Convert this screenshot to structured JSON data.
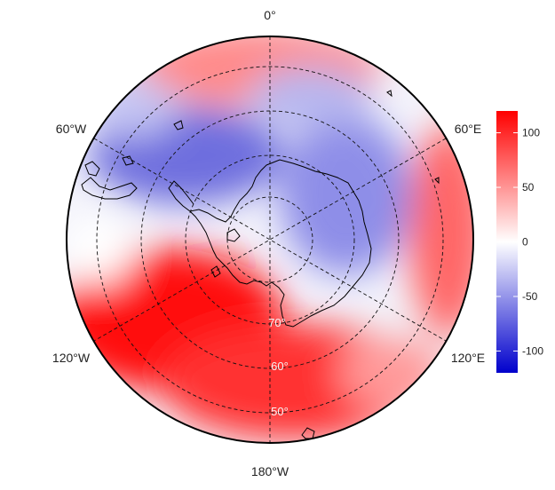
{
  "map": {
    "projection": "south polar stereographic",
    "longitude_labels": {
      "top": "0°",
      "upper_left": "60°W",
      "upper_right": "60°E",
      "lower_left": "120°W",
      "lower_right": "120°E",
      "bottom": "180°W"
    },
    "latitude_labels": [
      "70°",
      "60°",
      "50°"
    ],
    "field_description": "diverging anomaly field, red positive, blue negative"
  },
  "colorbar": {
    "ticks": [
      "100",
      "50",
      "0",
      "-50",
      "-100"
    ],
    "tick_values": [
      100,
      50,
      0,
      -50,
      -100
    ],
    "range": [
      -120,
      120
    ],
    "colors": {
      "low": "#0000cc",
      "mid": "#ffffff",
      "high": "#ff0000"
    }
  }
}
